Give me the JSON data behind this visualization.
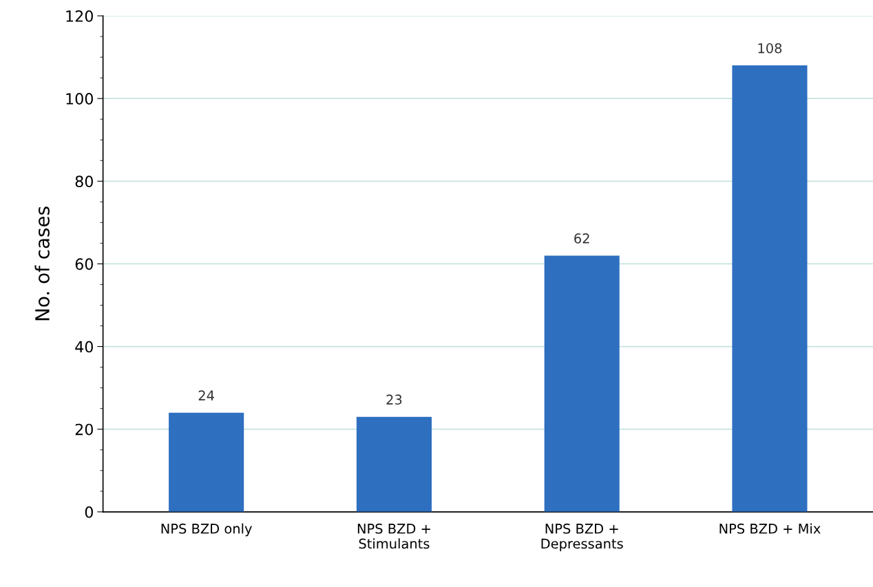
{
  "chart_data": {
    "type": "bar",
    "ylabel": "No. of cases",
    "categories": [
      "NPS BZD only",
      "NPS BZD +\nStimulants",
      "NPS BZD +\nDepressants",
      "NPS BZD + Mix"
    ],
    "values": [
      24,
      23,
      62,
      108
    ],
    "color": "#2e6fc0",
    "ylim": [
      0,
      120
    ],
    "yticks": [
      0,
      20,
      40,
      60,
      80,
      100,
      120
    ],
    "grid": "y",
    "data_labels": true
  }
}
